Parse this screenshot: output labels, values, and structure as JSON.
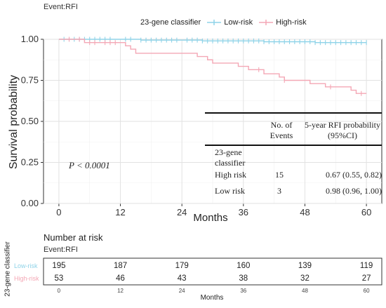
{
  "event_label": "Event:RFI",
  "legend": {
    "title": "23-gene classifier",
    "items": [
      {
        "label": "Low-risk",
        "color": "#8fd3e8"
      },
      {
        "label": "High-risk",
        "color": "#f4a7b5"
      }
    ]
  },
  "p_value": "P < 0.0001",
  "table": {
    "col_events": "No. of Events",
    "col_rfi": "5-year RFI probability (95%CI)",
    "row_header": "23-gene classifier",
    "rows": [
      {
        "group": "High risk",
        "events": "15",
        "rfi": "0.67 (0.55, 0.82)"
      },
      {
        "group": "Low risk",
        "events": "3",
        "rfi": "0.98 (0.96, 1.00)"
      }
    ]
  },
  "risk_table": {
    "title": "Number at risk",
    "event_label": "Event:RFI",
    "ylabel": "23-gene classifier",
    "xlabel": "Months",
    "ticks": [
      0,
      12,
      24,
      36,
      48,
      60
    ],
    "rows": [
      {
        "label": "Low-risk",
        "color": "#8fd3e8",
        "values": [
          195,
          187,
          179,
          160,
          139,
          119
        ]
      },
      {
        "label": "High-risk",
        "color": "#f4a7b5",
        "values": [
          53,
          46,
          43,
          38,
          32,
          27
        ]
      }
    ]
  },
  "chart_data": {
    "type": "line",
    "title": "",
    "xlabel": "Months",
    "ylabel": "Survival probability",
    "xlim": [
      -3,
      63
    ],
    "ylim": [
      0,
      1
    ],
    "xticks": [
      0,
      12,
      24,
      36,
      48,
      60
    ],
    "yticks": [
      "0.00",
      "0.25",
      "0.50",
      "0.75",
      "1.00"
    ],
    "grid": true,
    "legend_position": "top",
    "series": [
      {
        "name": "Low-risk",
        "color": "#8fd3e8",
        "step": [
          [
            0,
            1.0
          ],
          [
            12,
            1.0
          ],
          [
            16,
            0.995
          ],
          [
            28,
            0.99
          ],
          [
            40,
            0.985
          ],
          [
            50,
            0.98
          ],
          [
            60,
            0.98
          ]
        ],
        "censors": [
          1,
          2,
          3,
          4,
          5,
          6,
          7,
          8,
          9,
          10,
          13,
          14,
          16,
          17,
          18,
          19,
          20,
          21,
          22,
          23,
          25,
          26,
          27,
          28,
          29,
          30,
          31,
          32,
          33,
          34,
          35,
          36,
          37,
          38,
          39,
          40,
          41,
          42,
          43,
          44,
          45,
          46,
          47,
          48,
          49,
          50,
          51,
          52,
          53,
          54,
          55,
          56,
          57,
          58,
          59,
          60
        ]
      },
      {
        "name": "High-risk",
        "color": "#f4a7b5",
        "step": [
          [
            0,
            1.0
          ],
          [
            5,
            0.98
          ],
          [
            12,
            0.98
          ],
          [
            13,
            0.96
          ],
          [
            14,
            0.94
          ],
          [
            15,
            0.915
          ],
          [
            24,
            0.915
          ],
          [
            27,
            0.895
          ],
          [
            29,
            0.875
          ],
          [
            30,
            0.855
          ],
          [
            35,
            0.835
          ],
          [
            37,
            0.815
          ],
          [
            40,
            0.79
          ],
          [
            43,
            0.77
          ],
          [
            44,
            0.75
          ],
          [
            49,
            0.73
          ],
          [
            52,
            0.71
          ],
          [
            57,
            0.69
          ],
          [
            58,
            0.67
          ],
          [
            60,
            0.67
          ]
        ],
        "censors": [
          2,
          4,
          6,
          7,
          9,
          10,
          11,
          39,
          44,
          53,
          59
        ]
      }
    ]
  }
}
